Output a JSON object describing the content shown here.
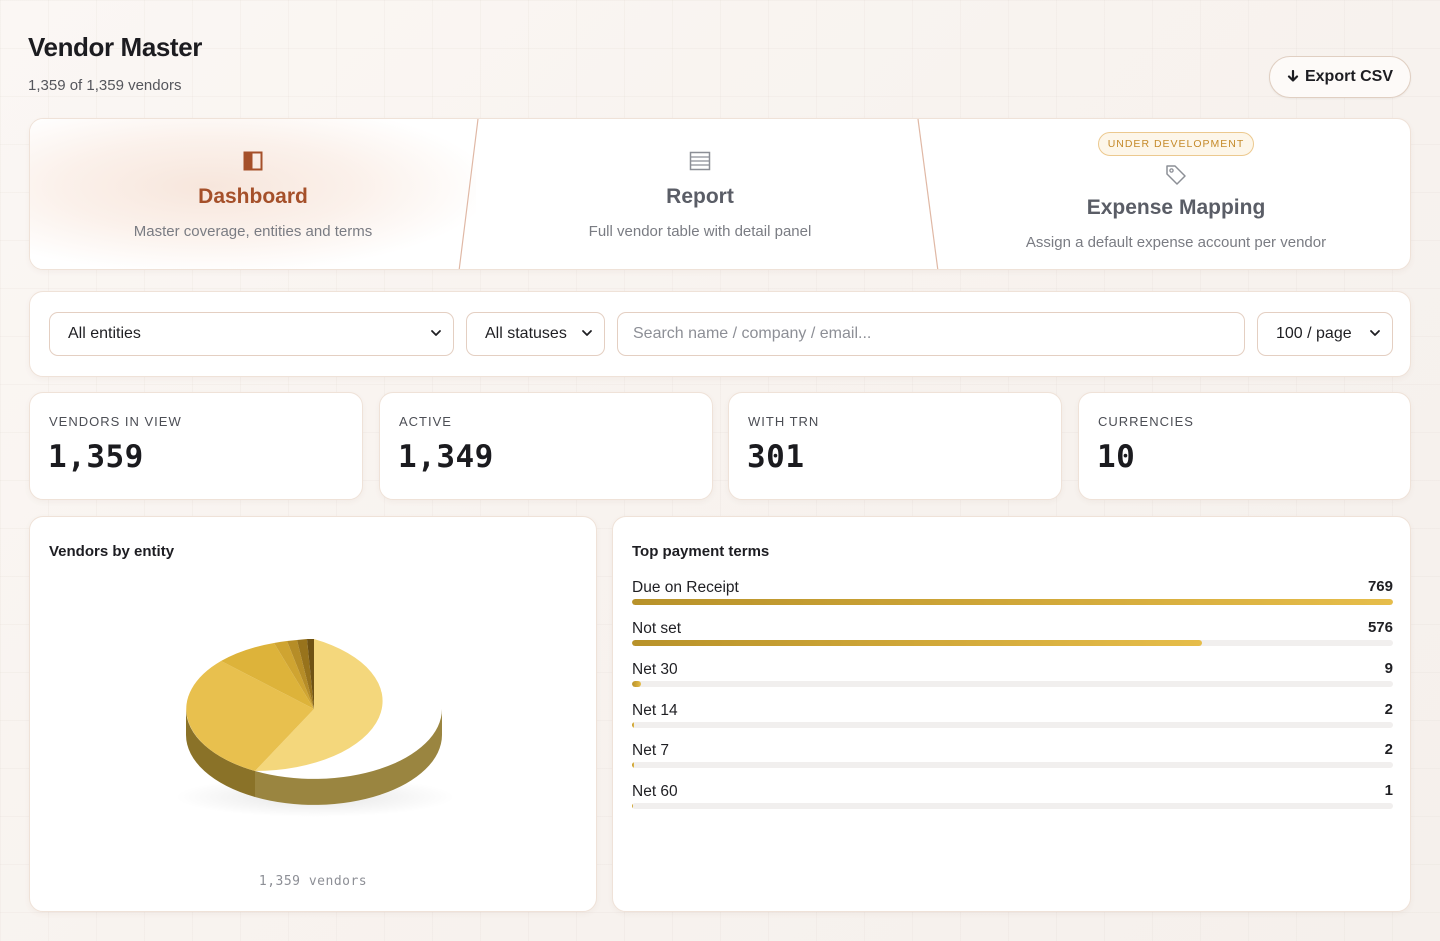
{
  "page": {
    "title": "Vendor Master",
    "subtitle": "1,359 of 1,359 vendors",
    "export_label": "Export CSV",
    "export_icon": "download-arrow-icon"
  },
  "tabs": [
    {
      "label": "Dashboard",
      "desc": "Master coverage, entities and terms",
      "icon": "split-panel-icon",
      "active": true
    },
    {
      "label": "Report",
      "desc": "Full vendor table with detail panel",
      "icon": "table-icon",
      "active": false
    },
    {
      "label": "Expense Mapping",
      "desc": "Assign a default expense account per vendor",
      "icon": "tag-icon",
      "badge": "UNDER DEVELOPMENT",
      "active": false
    }
  ],
  "filters": {
    "entity": "All entities",
    "status": "All statuses",
    "search_placeholder": "Search name / company / email...",
    "page_size": "100 / page"
  },
  "stats": [
    {
      "label": "VENDORS IN VIEW",
      "value": "1,359"
    },
    {
      "label": "ACTIVE",
      "value": "1,349"
    },
    {
      "label": "WITH TRN",
      "value": "301"
    },
    {
      "label": "CURRENCIES",
      "value": "10"
    }
  ],
  "pie": {
    "title": "Vendors by entity",
    "caption": "1,359 vendors",
    "colors": [
      "#f4d77c",
      "#e8c04e",
      "#ddb33a",
      "#cfa431",
      "#b68d27",
      "#98731c",
      "#6f5213"
    ]
  },
  "terms": {
    "title": "Top payment terms",
    "max": 769,
    "items": [
      {
        "name": "Due on Receipt",
        "count": 769
      },
      {
        "name": "Not set",
        "count": 576
      },
      {
        "name": "Net 30",
        "count": 9
      },
      {
        "name": "Net 14",
        "count": 2
      },
      {
        "name": "Net 7",
        "count": 2
      },
      {
        "name": "Net 60",
        "count": 1
      }
    ]
  }
}
